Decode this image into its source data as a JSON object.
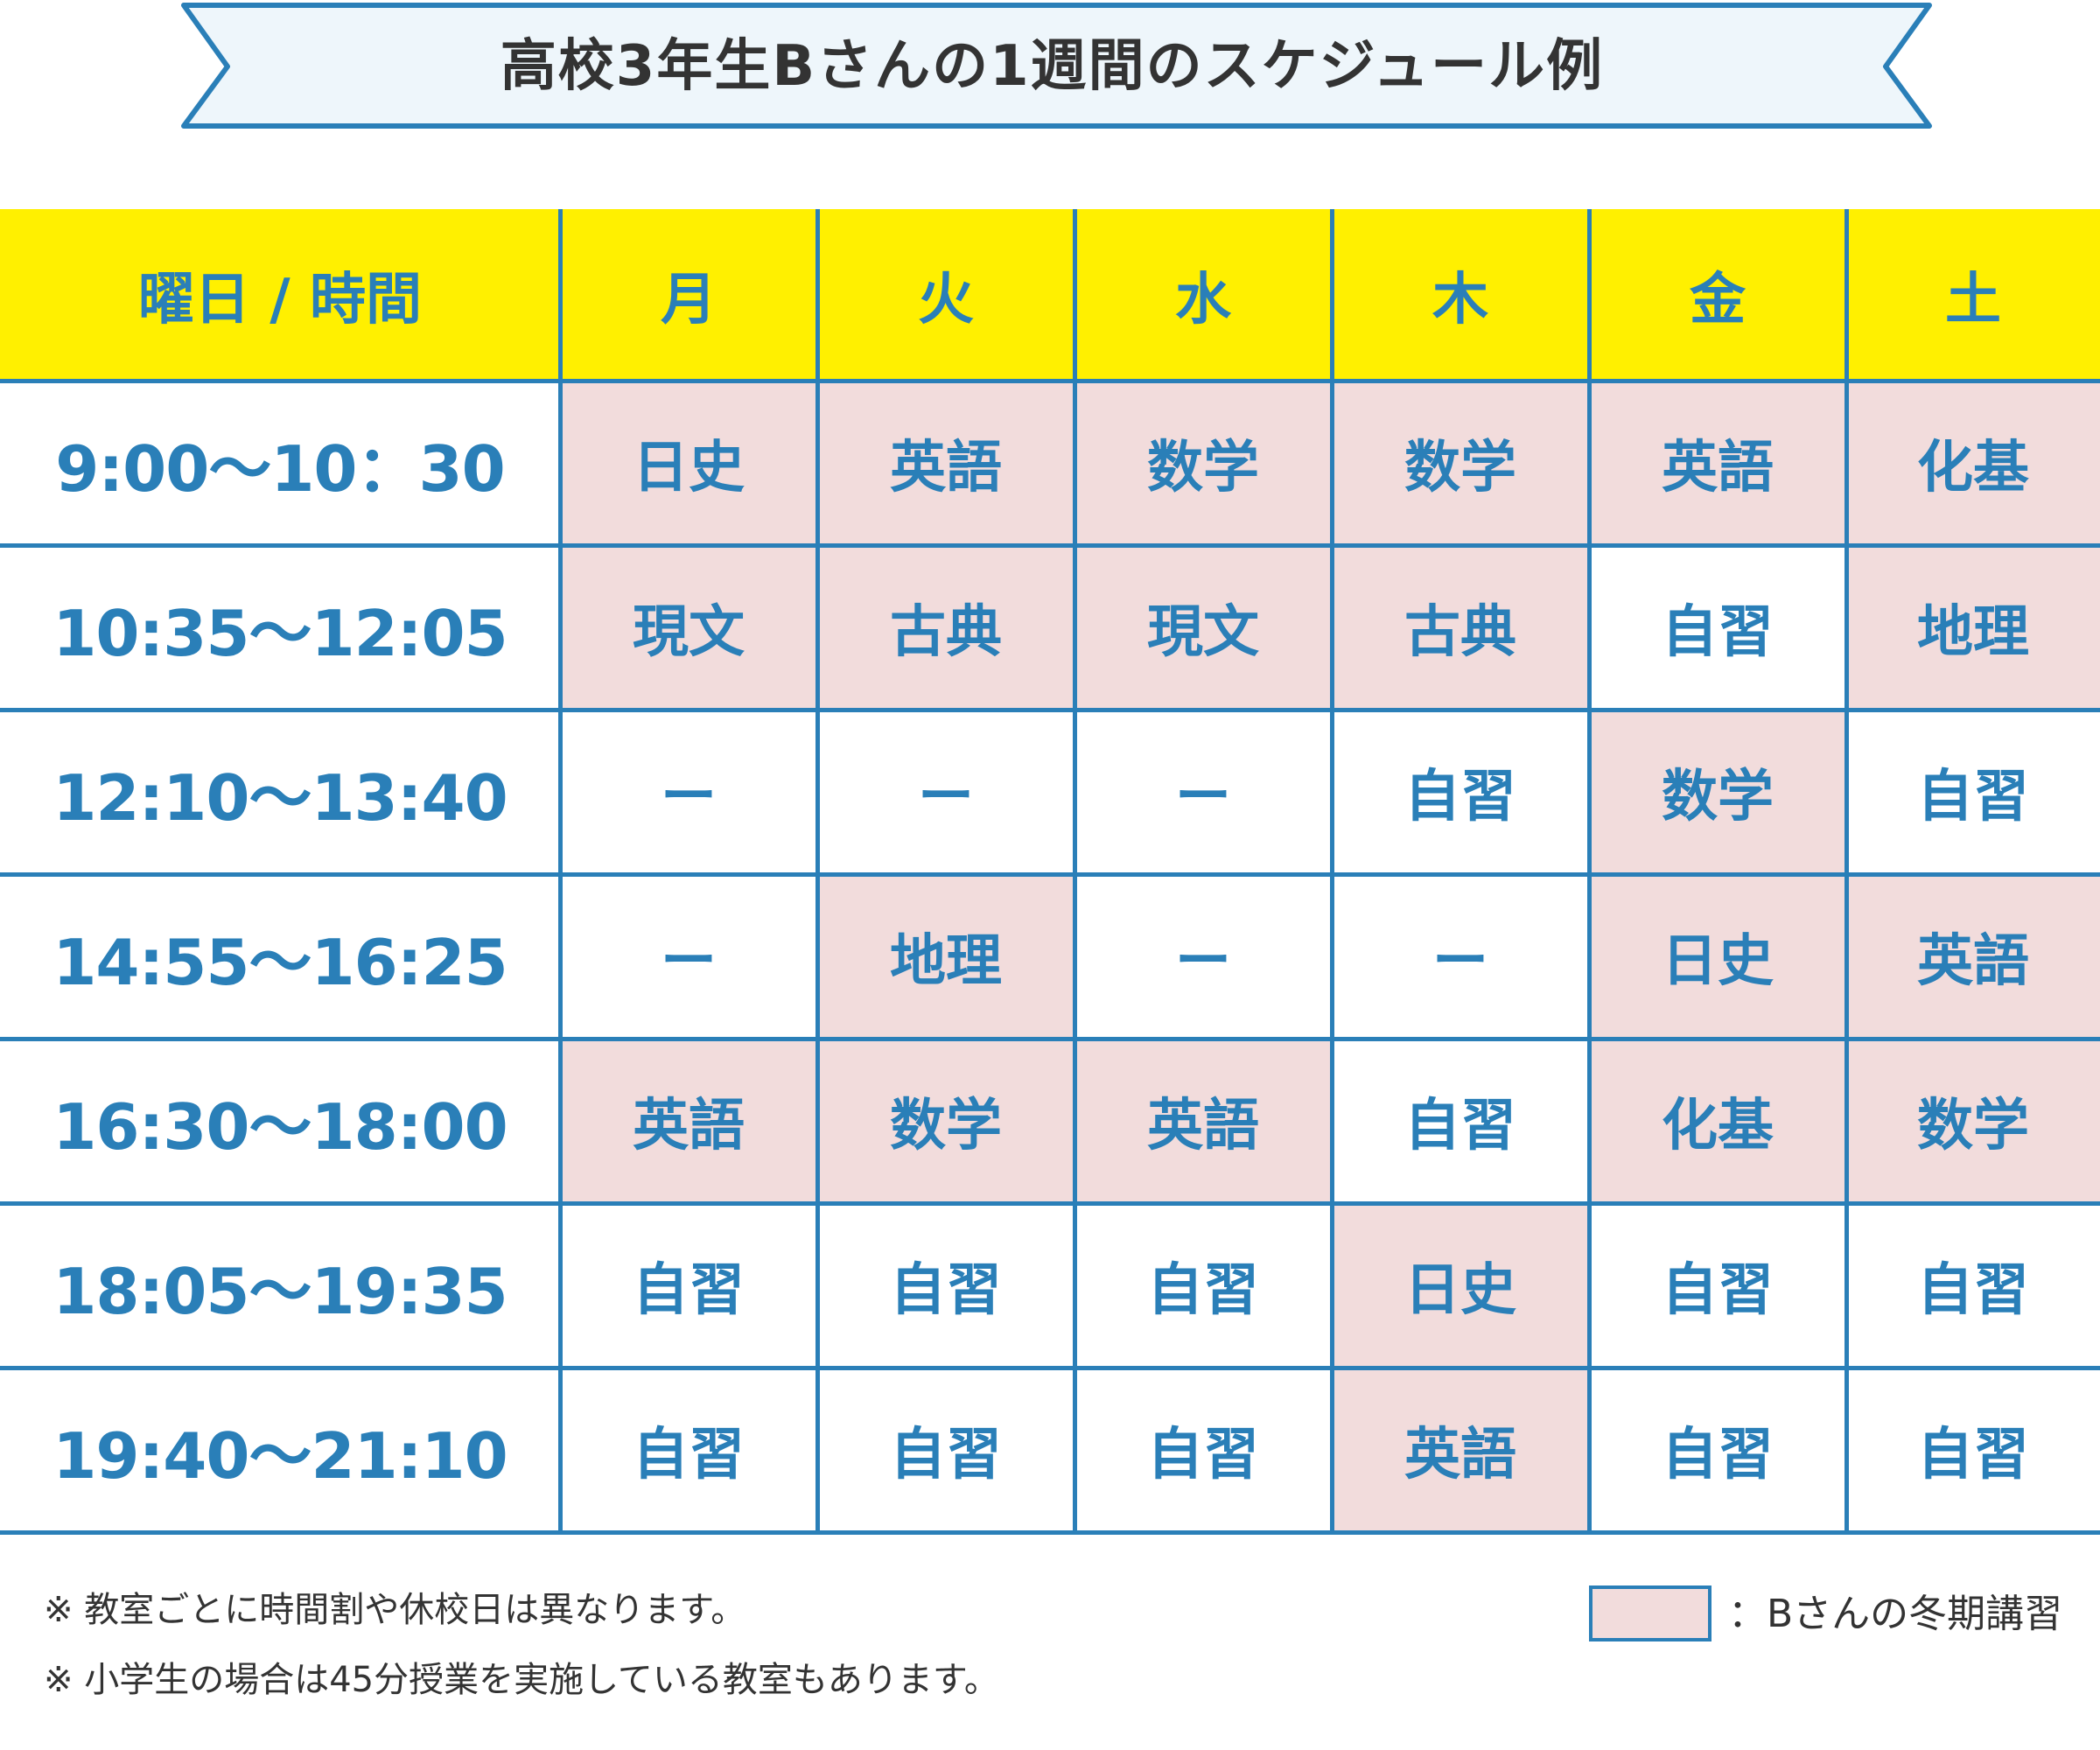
{
  "title": "高校3年生Bさんの1週間のスケジュール例",
  "colors": {
    "accent": "#2a7fb8",
    "header_bg": "#fff000",
    "winter_course_bg": "#f2dcdc",
    "banner_bg": "#eef6fb",
    "text_dark": "#333333"
  },
  "table": {
    "corner_label": "曜日 / 時間",
    "days": [
      "月",
      "火",
      "水",
      "木",
      "金",
      "土"
    ],
    "rows": [
      {
        "time": "9:00〜10：30",
        "cells": [
          {
            "subject": "日史",
            "winter": true
          },
          {
            "subject": "英語",
            "winter": true
          },
          {
            "subject": "数学",
            "winter": true
          },
          {
            "subject": "数学",
            "winter": true
          },
          {
            "subject": "英語",
            "winter": true
          },
          {
            "subject": "化基",
            "winter": true
          }
        ]
      },
      {
        "time": "10:35〜12:05",
        "cells": [
          {
            "subject": "現文",
            "winter": true
          },
          {
            "subject": "古典",
            "winter": true
          },
          {
            "subject": "現文",
            "winter": true
          },
          {
            "subject": "古典",
            "winter": true
          },
          {
            "subject": "自習",
            "winter": false
          },
          {
            "subject": "地理",
            "winter": true
          }
        ]
      },
      {
        "time": "12:10〜13:40",
        "cells": [
          {
            "subject": "ー",
            "winter": false
          },
          {
            "subject": "ー",
            "winter": false
          },
          {
            "subject": "ー",
            "winter": false
          },
          {
            "subject": "自習",
            "winter": false
          },
          {
            "subject": "数学",
            "winter": true
          },
          {
            "subject": "自習",
            "winter": false
          }
        ]
      },
      {
        "time": "14:55〜16:25",
        "cells": [
          {
            "subject": "ー",
            "winter": false
          },
          {
            "subject": "地理",
            "winter": true
          },
          {
            "subject": "ー",
            "winter": false
          },
          {
            "subject": "ー",
            "winter": false
          },
          {
            "subject": "日史",
            "winter": true
          },
          {
            "subject": "英語",
            "winter": true
          }
        ]
      },
      {
        "time": "16:30〜18:00",
        "cells": [
          {
            "subject": "英語",
            "winter": true
          },
          {
            "subject": "数学",
            "winter": true
          },
          {
            "subject": "英語",
            "winter": true
          },
          {
            "subject": "自習",
            "winter": false
          },
          {
            "subject": "化基",
            "winter": true
          },
          {
            "subject": "数学",
            "winter": true
          }
        ]
      },
      {
        "time": "18:05〜19:35",
        "cells": [
          {
            "subject": "自習",
            "winter": false
          },
          {
            "subject": "自習",
            "winter": false
          },
          {
            "subject": "自習",
            "winter": false
          },
          {
            "subject": "日史",
            "winter": true
          },
          {
            "subject": "自習",
            "winter": false
          },
          {
            "subject": "自習",
            "winter": false
          }
        ]
      },
      {
        "time": "19:40〜21:10",
        "cells": [
          {
            "subject": "自習",
            "winter": false
          },
          {
            "subject": "自習",
            "winter": false
          },
          {
            "subject": "自習",
            "winter": false
          },
          {
            "subject": "英語",
            "winter": true
          },
          {
            "subject": "自習",
            "winter": false
          },
          {
            "subject": "自習",
            "winter": false
          }
        ]
      }
    ]
  },
  "notes": [
    "※ 教室ごとに時間割や休校日は異なります。",
    "※ 小学生の場合は45分授業を実施している教室もあります。"
  ],
  "legend": {
    "label": "：Bさんの冬期講習"
  }
}
